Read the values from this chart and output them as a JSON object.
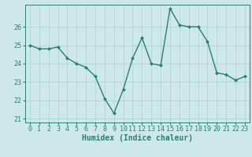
{
  "x": [
    0,
    1,
    2,
    3,
    4,
    5,
    6,
    7,
    8,
    9,
    10,
    11,
    12,
    13,
    14,
    15,
    16,
    17,
    18,
    19,
    20,
    21,
    22,
    23
  ],
  "y": [
    25.0,
    24.8,
    24.8,
    24.9,
    24.3,
    24.0,
    23.8,
    23.3,
    22.1,
    21.3,
    22.6,
    24.3,
    25.4,
    24.0,
    23.9,
    27.0,
    26.1,
    26.0,
    26.0,
    25.2,
    23.5,
    23.4,
    23.1,
    23.3
  ],
  "xlabel": "Humidex (Indice chaleur)",
  "ylim": [
    20.8,
    27.2
  ],
  "xlim": [
    -0.5,
    23.5
  ],
  "yticks": [
    21,
    22,
    23,
    24,
    25,
    26
  ],
  "xticks": [
    0,
    1,
    2,
    3,
    4,
    5,
    6,
    7,
    8,
    9,
    10,
    11,
    12,
    13,
    14,
    15,
    16,
    17,
    18,
    19,
    20,
    21,
    22,
    23
  ],
  "line_color": "#2e7d6e",
  "marker_color": "#2e7d6e",
  "bg_color": "#cce8e8",
  "grid_color": "#aed0d0",
  "axis_color": "#2e7d6e",
  "tick_color": "#2e7d6e",
  "label_color": "#2e7d6e",
  "font_size_xlabel": 7,
  "font_size_ticks": 6,
  "marker": "D",
  "marker_size": 2.0,
  "line_width": 1.0
}
